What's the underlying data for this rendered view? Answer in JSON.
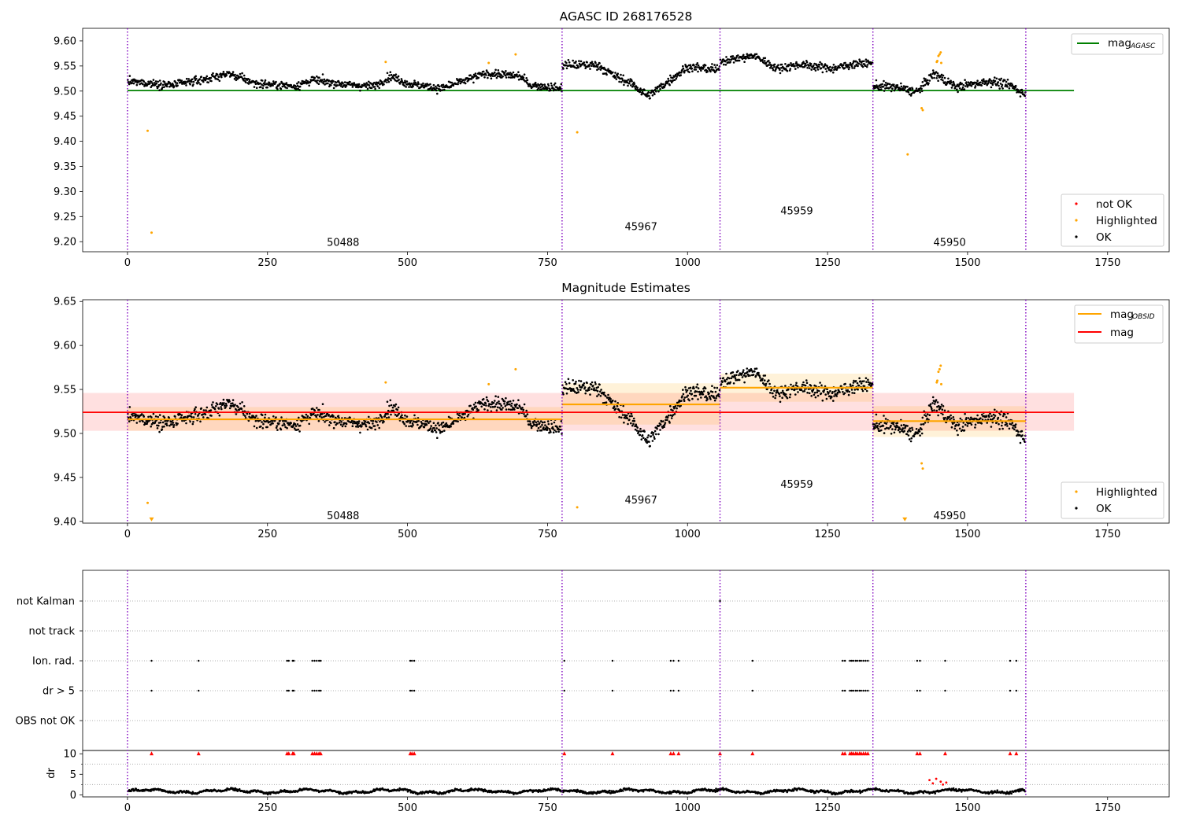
{
  "chart_data": [
    {
      "type": "scatter",
      "title": "AGASC ID 268176528",
      "xlim": [
        -80,
        1860
      ],
      "ylim": [
        9.18,
        9.625
      ],
      "xticks": [
        0,
        250,
        500,
        750,
        1000,
        1250,
        1500,
        1750
      ],
      "yticks": [
        9.2,
        9.25,
        9.3,
        9.35,
        9.4,
        9.45,
        9.5,
        9.55,
        9.6
      ],
      "ytick_labels": [
        "9.20",
        "9.25",
        "9.30",
        "9.35",
        "9.40",
        "9.45",
        "9.50",
        "9.55",
        "9.60"
      ],
      "grid": false,
      "legend_top": {
        "position": "top-right",
        "entries": [
          {
            "label": "mag",
            "subscript": "AGASC",
            "color": "#008000"
          }
        ]
      },
      "legend_bottom": {
        "position": "bottom-right",
        "entries": [
          {
            "label": "not OK",
            "color": "#ff0000"
          },
          {
            "label": "Highlighted",
            "color": "#ffa500"
          },
          {
            "label": "OK",
            "color": "#000000"
          }
        ]
      },
      "mag_agasc": 9.501,
      "mag_agasc_x": [
        0,
        1690
      ],
      "obsid_boundaries": [
        0,
        776,
        1058,
        1331,
        1604
      ],
      "obsid_labels": [
        {
          "text": "50488",
          "x": 385,
          "y": 9.198
        },
        {
          "text": "45967",
          "x": 917,
          "y": 9.229
        },
        {
          "text": "45959",
          "x": 1195,
          "y": 9.261
        },
        {
          "text": "45950",
          "x": 1468,
          "y": 9.198
        }
      ],
      "segments": [
        {
          "x": [
            0,
            776
          ],
          "base": 9.518,
          "noise": 0.009,
          "anchors": [
            [
              0,
              9.519
            ],
            [
              80,
              9.512
            ],
            [
              150,
              9.526
            ],
            [
              180,
              9.535
            ],
            [
              230,
              9.515
            ],
            [
              300,
              9.51
            ],
            [
              330,
              9.522
            ],
            [
              400,
              9.512
            ],
            [
              440,
              9.51
            ],
            [
              470,
              9.53
            ],
            [
              500,
              9.515
            ],
            [
              560,
              9.505
            ],
            [
              640,
              9.535
            ],
            [
              700,
              9.53
            ],
            [
              720,
              9.512
            ],
            [
              776,
              9.505
            ]
          ]
        },
        {
          "x": [
            776,
            1058
          ],
          "base": 9.53,
          "noise": 0.01,
          "anchors": [
            [
              776,
              9.552
            ],
            [
              840,
              9.552
            ],
            [
              870,
              9.53
            ],
            [
              900,
              9.515
            ],
            [
              930,
              9.49
            ],
            [
              960,
              9.515
            ],
            [
              1000,
              9.548
            ],
            [
              1058,
              9.542
            ]
          ]
        },
        {
          "x": [
            1058,
            1331
          ],
          "base": 9.552,
          "noise": 0.009,
          "anchors": [
            [
              1058,
              9.56
            ],
            [
              1120,
              9.57
            ],
            [
              1160,
              9.545
            ],
            [
              1200,
              9.553
            ],
            [
              1260,
              9.545
            ],
            [
              1300,
              9.555
            ],
            [
              1331,
              9.555
            ]
          ]
        },
        {
          "x": [
            1331,
            1604
          ],
          "base": 9.513,
          "noise": 0.01,
          "anchors": [
            [
              1331,
              9.51
            ],
            [
              1370,
              9.508
            ],
            [
              1410,
              9.498
            ],
            [
              1440,
              9.535
            ],
            [
              1480,
              9.508
            ],
            [
              1540,
              9.52
            ],
            [
              1580,
              9.51
            ],
            [
              1604,
              9.492
            ]
          ]
        }
      ],
      "highlighted_points": [
        [
          36,
          9.421
        ],
        [
          43,
          9.218
        ],
        [
          461,
          9.558
        ],
        [
          645,
          9.556
        ],
        [
          693,
          9.573
        ],
        [
          803,
          9.418
        ],
        [
          1393,
          9.374
        ],
        [
          1418,
          9.466
        ],
        [
          1420,
          9.462
        ],
        [
          1445,
          9.558
        ],
        [
          1446,
          9.56
        ],
        [
          1448,
          9.57
        ],
        [
          1450,
          9.573
        ],
        [
          1452,
          9.577
        ],
        [
          1453,
          9.556
        ]
      ]
    },
    {
      "type": "scatter",
      "title": "Magnitude Estimates",
      "xlim": [
        -80,
        1860
      ],
      "ylim": [
        9.398,
        9.652
      ],
      "xticks": [
        0,
        250,
        500,
        750,
        1000,
        1250,
        1500,
        1750
      ],
      "yticks": [
        9.4,
        9.45,
        9.5,
        9.55,
        9.6,
        9.65
      ],
      "ytick_labels": [
        "9.40",
        "9.45",
        "9.50",
        "9.55",
        "9.60",
        "9.65"
      ],
      "grid": false,
      "legend_top": {
        "position": "top-right",
        "entries": [
          {
            "label": "mag",
            "subscript": "OBSID",
            "color": "#ffa500"
          },
          {
            "label": "mag",
            "subscript": "",
            "color": "#ff0000"
          }
        ]
      },
      "legend_bottom": {
        "position": "bottom-right",
        "entries": [
          {
            "label": "Highlighted",
            "color": "#ffa500"
          },
          {
            "label": "OK",
            "color": "#000000"
          }
        ]
      },
      "mag": 9.524,
      "mag_band": [
        9.503,
        9.546
      ],
      "mag_x": [
        -80,
        1690
      ],
      "obsid_mags": [
        {
          "x": [
            0,
            776
          ],
          "mag": 9.516,
          "band": [
            9.503,
            9.53
          ]
        },
        {
          "x": [
            776,
            1058
          ],
          "mag": 9.533,
          "band": [
            9.51,
            9.557
          ]
        },
        {
          "x": [
            1058,
            1331
          ],
          "mag": 9.552,
          "band": [
            9.536,
            9.568
          ]
        },
        {
          "x": [
            1331,
            1604
          ],
          "mag": 9.514,
          "band": [
            9.496,
            9.531
          ]
        }
      ],
      "obsid_boundaries": [
        0,
        776,
        1058,
        1331,
        1604
      ],
      "obsid_labels": [
        {
          "text": "50488",
          "x": 385,
          "y": 9.406
        },
        {
          "text": "45967",
          "x": 917,
          "y": 9.424
        },
        {
          "text": "45959",
          "x": 1195,
          "y": 9.442
        },
        {
          "text": "45950",
          "x": 1468,
          "y": 9.406
        }
      ],
      "highlighted_points": [
        [
          36,
          9.421
        ],
        [
          461,
          9.558
        ],
        [
          645,
          9.556
        ],
        [
          693,
          9.573
        ],
        [
          803,
          9.416
        ],
        [
          1418,
          9.466
        ],
        [
          1420,
          9.46
        ],
        [
          1445,
          9.558
        ],
        [
          1446,
          9.56
        ],
        [
          1448,
          9.57
        ],
        [
          1450,
          9.573
        ],
        [
          1452,
          9.577
        ],
        [
          1453,
          9.556
        ]
      ],
      "clipped_markers": [
        [
          43,
          9.4
        ],
        [
          1388,
          9.4
        ]
      ]
    },
    {
      "type": "scatter",
      "title": "",
      "xlim": [
        -80,
        1860
      ],
      "xticks": [
        0,
        250,
        500,
        750,
        1000,
        1250,
        1500,
        1750
      ],
      "flag_rows": [
        "not Kalman",
        "not track",
        "Ion. rad.",
        "dr > 5",
        "OBS not OK"
      ],
      "flag_points": {
        "not Kalman": [
          1058
        ],
        "not track": [],
        "Ion. rad.": [
          43,
          127,
          285,
          288,
          295,
          297,
          330,
          334,
          338,
          342,
          345,
          505,
          508,
          512,
          780,
          866,
          970,
          975,
          984,
          1116,
          1277,
          1281,
          1290,
          1293,
          1296,
          1300,
          1303,
          1307,
          1310,
          1314,
          1318,
          1322,
          1410,
          1415,
          1460,
          1576,
          1587
        ],
        "dr > 5": [
          43,
          127,
          285,
          288,
          295,
          297,
          330,
          334,
          338,
          342,
          345,
          505,
          508,
          512,
          780,
          866,
          970,
          975,
          984,
          1116,
          1277,
          1281,
          1290,
          1293,
          1296,
          1300,
          1303,
          1307,
          1310,
          1314,
          1318,
          1322,
          1410,
          1415,
          1460,
          1576,
          1587
        ],
        "OBS not OK": []
      },
      "dr": {
        "ylabel": "dr",
        "ylim": [
          -0.5,
          10.8
        ],
        "yticks": [
          0,
          5,
          10
        ],
        "minor_yticks": [
          2.5,
          7.5
        ],
        "clip_value": 10,
        "clipped_x": [
          43,
          127,
          285,
          288,
          295,
          297,
          330,
          334,
          338,
          342,
          345,
          505,
          508,
          512,
          780,
          866,
          970,
          975,
          984,
          1058,
          1116,
          1277,
          1281,
          1290,
          1293,
          1296,
          1300,
          1303,
          1307,
          1310,
          1314,
          1318,
          1322,
          1410,
          1415,
          1460,
          1576,
          1587
        ],
        "segments": [
          [
            0,
            776
          ],
          [
            776,
            1058
          ],
          [
            1058,
            1331
          ],
          [
            1331,
            1604
          ]
        ],
        "baseline": 0.9,
        "highlighted_points": [
          [
            1432,
            3.6
          ],
          [
            1438,
            2.8
          ],
          [
            1444,
            3.9
          ],
          [
            1452,
            3.2
          ],
          [
            1456,
            2.5
          ],
          [
            1462,
            3.0
          ]
        ]
      },
      "obsid_boundaries": [
        0,
        776,
        1058,
        1331,
        1604
      ]
    }
  ]
}
